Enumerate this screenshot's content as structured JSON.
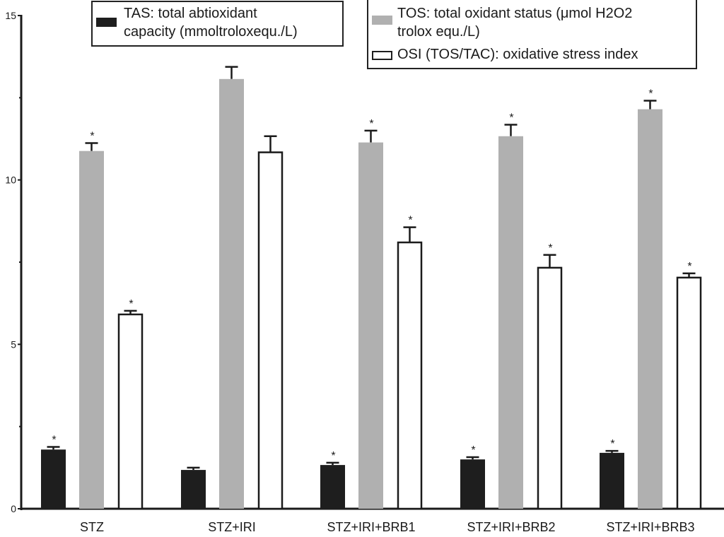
{
  "chart_data": {
    "type": "bar",
    "title": "",
    "xlabel": "",
    "ylabel": "",
    "ylim": [
      0,
      15
    ],
    "yticks": [
      0,
      5,
      10,
      15
    ],
    "yticks_minor": [
      2.5,
      7.5,
      12.5
    ],
    "ytick_labels": [
      "0",
      "5",
      "10",
      "15"
    ],
    "categories": [
      "STZ",
      "STZ+IRI",
      "STZ+IRI+BRB1",
      "STZ+IRI+BRB2",
      "STZ+IRI+BRB3"
    ],
    "series": [
      {
        "name": "TAS: total abtioxidant capacity (mmoltroloxequ./L)",
        "legend_line1": "TAS: total abtioxidant",
        "legend_line2": "capacity (mmoltroloxequ./L)",
        "color": "#1e1e1e",
        "style": "filled",
        "values": [
          1.8,
          1.18,
          1.33,
          1.5,
          1.7
        ],
        "errors": [
          0.08,
          0.07,
          0.07,
          0.07,
          0.06
        ],
        "significant": [
          true,
          false,
          true,
          true,
          true
        ]
      },
      {
        "name": "TOS: total oxidant status (μmol H2O2 trolox equ./L)",
        "legend_line1": "TOS: total oxidant status (μmol H2O2",
        "legend_line2": "trolox equ./L)",
        "color": "#b0b0b0",
        "style": "filled",
        "values": [
          10.88,
          13.07,
          11.14,
          11.33,
          12.15
        ],
        "errors": [
          0.24,
          0.37,
          0.36,
          0.35,
          0.26
        ],
        "significant": [
          true,
          false,
          true,
          true,
          true
        ]
      },
      {
        "name": "OSI (TOS/TAC): oxidative stress index",
        "legend_line1": "OSI (TOS/TAC): oxidative stress index",
        "color": "#ffffff",
        "style": "outline",
        "values": [
          5.91,
          10.84,
          8.1,
          7.33,
          7.03
        ],
        "errors": [
          0.11,
          0.49,
          0.46,
          0.39,
          0.13
        ],
        "significant": [
          true,
          false,
          true,
          true,
          true
        ]
      }
    ],
    "significance_marker": "*",
    "grid": false,
    "legend_placement": "top"
  }
}
